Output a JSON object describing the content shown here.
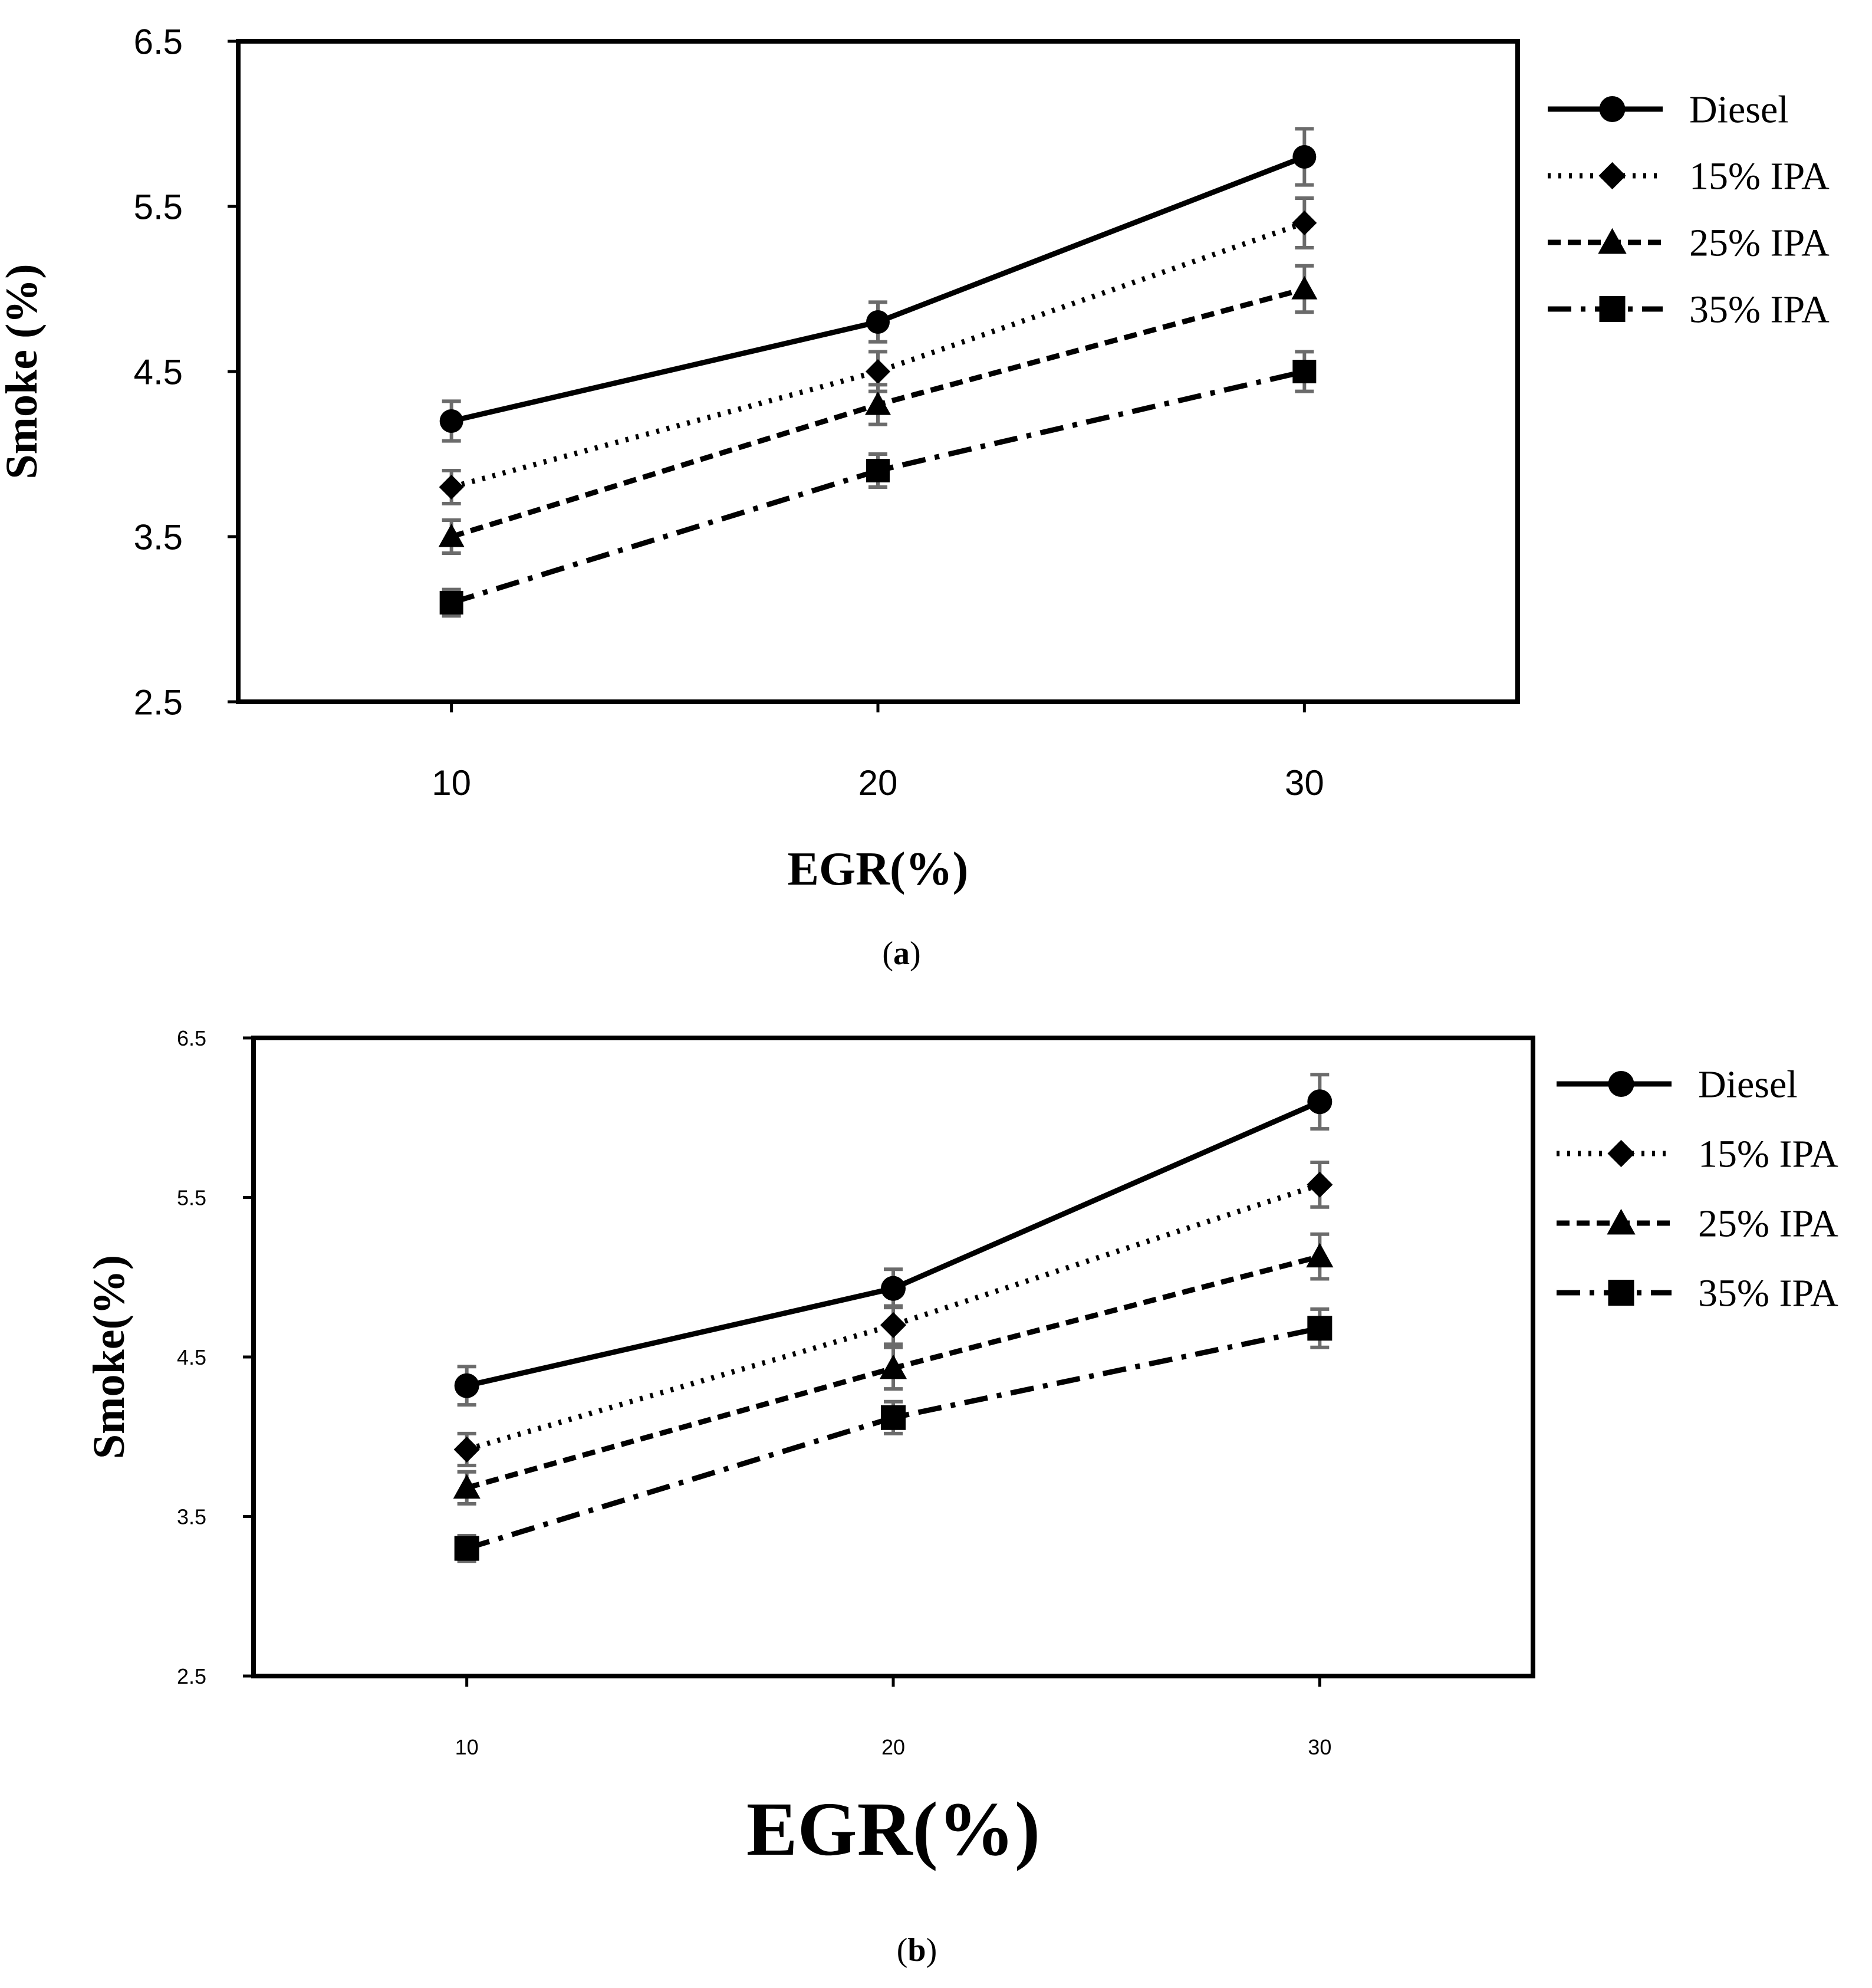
{
  "chart_data": [
    {
      "type": "line",
      "panel_label": "a",
      "xlabel": "EGR(%)",
      "ylabel": "Smoke (%)",
      "x": [
        10,
        20,
        30
      ],
      "xlim": [
        5,
        35
      ],
      "ylim": [
        2.5,
        6.5
      ],
      "yticks": [
        "2.5",
        "3.5",
        "4.5",
        "5.5",
        "6.5"
      ],
      "xticks": [
        "10",
        "20",
        "30"
      ],
      "legend_position": "right",
      "series": [
        {
          "name": "Diesel",
          "values": [
            4.2,
            4.8,
            5.8
          ],
          "error": [
            0.12,
            0.12,
            0.17
          ],
          "marker": "circle",
          "dash": "solid"
        },
        {
          "name": "15% IPA",
          "values": [
            3.8,
            4.5,
            5.4
          ],
          "error": [
            0.1,
            0.12,
            0.15
          ],
          "marker": "diamond",
          "dash": "dotted"
        },
        {
          "name": "25% IPA",
          "values": [
            3.5,
            4.3,
            5.0
          ],
          "error": [
            0.1,
            0.12,
            0.14
          ],
          "marker": "triangle",
          "dash": "dashed"
        },
        {
          "name": "35% IPA",
          "values": [
            3.1,
            3.9,
            4.5
          ],
          "error": [
            0.08,
            0.1,
            0.12
          ],
          "marker": "square",
          "dash": "dashdot"
        }
      ]
    },
    {
      "type": "line",
      "panel_label": "b",
      "xlabel": "EGR(%)",
      "ylabel": "Smoke(%)",
      "x": [
        10,
        20,
        30
      ],
      "xlim": [
        5,
        35
      ],
      "ylim": [
        2.5,
        6.5
      ],
      "yticks": [
        "2.5",
        "3.5",
        "4.5",
        "5.5",
        "6.5"
      ],
      "xticks": [
        "10",
        "20",
        "30"
      ],
      "legend_position": "right",
      "series": [
        {
          "name": "Diesel",
          "values": [
            4.32,
            4.93,
            6.1
          ],
          "error": [
            0.12,
            0.12,
            0.17
          ],
          "marker": "circle",
          "dash": "solid"
        },
        {
          "name": "15% IPA",
          "values": [
            3.92,
            4.7,
            5.58
          ],
          "error": [
            0.1,
            0.12,
            0.14
          ],
          "marker": "diamond",
          "dash": "dotted"
        },
        {
          "name": "25% IPA",
          "values": [
            3.68,
            4.43,
            5.13
          ],
          "error": [
            0.1,
            0.13,
            0.14
          ],
          "marker": "triangle",
          "dash": "dashed"
        },
        {
          "name": "35% IPA",
          "values": [
            3.3,
            4.12,
            4.68
          ],
          "error": [
            0.08,
            0.1,
            0.12
          ],
          "marker": "square",
          "dash": "dashdot"
        }
      ]
    }
  ]
}
